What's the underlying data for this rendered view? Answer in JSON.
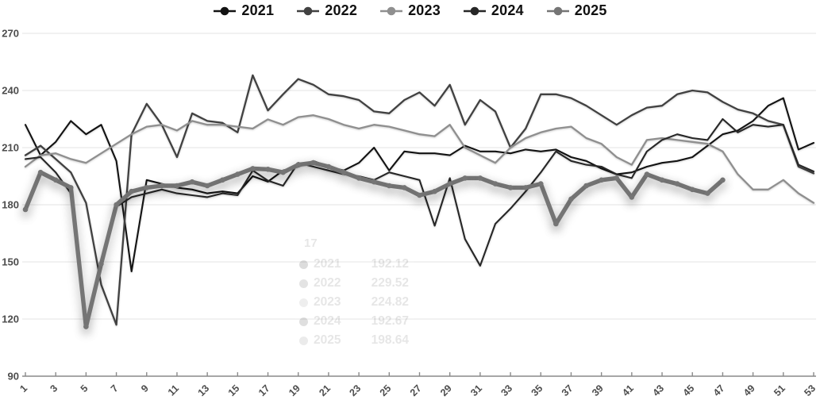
{
  "chart_data": {
    "type": "line",
    "title": "",
    "xlabel": "",
    "ylabel": "",
    "x_min": 1,
    "x_max": 53,
    "ylim": [
      90,
      270
    ],
    "y_ticks": [
      90,
      120,
      150,
      180,
      210,
      240,
      270
    ],
    "x_tick_labels": [
      "1",
      "3",
      "5",
      "7",
      "9",
      "11",
      "13",
      "15",
      "17",
      "19",
      "21",
      "23",
      "25",
      "27",
      "29",
      "31",
      "33",
      "35",
      "37",
      "39",
      "41",
      "43",
      "45",
      "47",
      "49",
      "51",
      "53"
    ],
    "grid": "horizontal",
    "legend_position": "top-center",
    "series": [
      {
        "name": "2021",
        "color": "#131313",
        "width": 2.1,
        "markers": false,
        "values": [
          222,
          206,
          213,
          224,
          217,
          222,
          203,
          145,
          193,
          191,
          189,
          188,
          186,
          187,
          186,
          195,
          192.12,
          198,
          200,
          203,
          200,
          198,
          202,
          210,
          198,
          208,
          207,
          207,
          206,
          211,
          208,
          208,
          207,
          209,
          208,
          209,
          205,
          203,
          199,
          196,
          197,
          200,
          202,
          203,
          205,
          211,
          217,
          219,
          224,
          232,
          236,
          209,
          212.5
        ]
      },
      {
        "name": "2022",
        "color": "#414141",
        "width": 2.3,
        "markers": false,
        "values": [
          206,
          211,
          204,
          197,
          181,
          138,
          117,
          217,
          233,
          222,
          205,
          228,
          224,
          223,
          218,
          248,
          229.52,
          238,
          246,
          243,
          238,
          237,
          235,
          229,
          228,
          235,
          239,
          232,
          243,
          222,
          235,
          229,
          210,
          220,
          238,
          238,
          236,
          232,
          227,
          222,
          227,
          231,
          232,
          238,
          240,
          239,
          234,
          230,
          228,
          224,
          222,
          200,
          196.5
        ]
      },
      {
        "name": "2023",
        "color": "#8f8f8f",
        "width": 2.3,
        "markers": false,
        "values": [
          200,
          206,
          207,
          204,
          202,
          207,
          212,
          217,
          221,
          222,
          219,
          224,
          222,
          222,
          221,
          220,
          224.82,
          222,
          226,
          227,
          225,
          222,
          220,
          222,
          221,
          219,
          217,
          216,
          222,
          210,
          206,
          202,
          210,
          215,
          218,
          220,
          221,
          215,
          212,
          205,
          201,
          214,
          215,
          214,
          213,
          212,
          208,
          196,
          188,
          188,
          193,
          186,
          181
        ]
      },
      {
        "name": "2024",
        "color": "#272727",
        "width": 2.1,
        "markers": false,
        "values": [
          204,
          205,
          197,
          186,
          116,
          151,
          179,
          184,
          186,
          188,
          186,
          185,
          184,
          186,
          185,
          198,
          192.67,
          190,
          202,
          200,
          198,
          196,
          195,
          193,
          197,
          195,
          193,
          169,
          194,
          162,
          148,
          170,
          178,
          187,
          197,
          208,
          203,
          201,
          200,
          196,
          194,
          208,
          214,
          217,
          215,
          214,
          225,
          218,
          222,
          221,
          222,
          201,
          197.5
        ]
      },
      {
        "name": "2025",
        "color": "#757575",
        "width": 5.4,
        "markers": true,
        "values": [
          177.5,
          197,
          193,
          189,
          116,
          149,
          180,
          187,
          189,
          190,
          190,
          192,
          190,
          193,
          196,
          199,
          198.64,
          197,
          201,
          202,
          200,
          197,
          194,
          192,
          190,
          189,
          185,
          187,
          191,
          194,
          194,
          191,
          189,
          189,
          191,
          170,
          183,
          190,
          193,
          194,
          184,
          196,
          193,
          191,
          188,
          186,
          193
        ]
      }
    ]
  },
  "legend": {
    "items": [
      {
        "label": "2021",
        "color": "#131313"
      },
      {
        "label": "2022",
        "color": "#414141"
      },
      {
        "label": "2023",
        "color": "#8f8f8f"
      },
      {
        "label": "2024",
        "color": "#272727"
      },
      {
        "label": "2025",
        "color": "#757575"
      }
    ]
  },
  "tooltip": {
    "week": "17",
    "rows": [
      {
        "year": "2021",
        "value": "192.12",
        "color": "#131313"
      },
      {
        "year": "2022",
        "value": "229.52",
        "color": "#414141"
      },
      {
        "year": "2023",
        "value": "224.82",
        "color": "#8f8f8f"
      },
      {
        "year": "2024",
        "value": "192.67",
        "color": "#272727"
      },
      {
        "year": "2025",
        "value": "198.64",
        "color": "#757575"
      }
    ]
  }
}
